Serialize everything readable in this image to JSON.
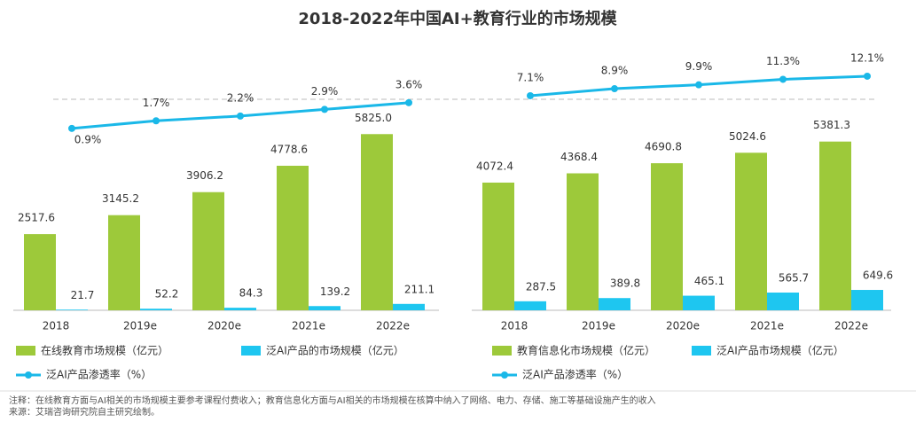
{
  "title": "2018-2022年中国AI+教育行业的市场规模",
  "chart_data": [
    {
      "type": "bar",
      "categories": [
        "2018",
        "2019e",
        "2020e",
        "2021e",
        "2022e"
      ],
      "ylim": [
        0,
        8500
      ],
      "y2lim": [
        -18.2,
        8.8
      ],
      "series": [
        {
          "name": "在线教育市场规模（亿元）",
          "color": "#9dc93a",
          "values": [
            2517.6,
            3145.2,
            3906.2,
            4778.6,
            5825.0
          ],
          "value_labels": [
            "2517.6",
            "3145.2",
            "3906.2",
            "4778.6",
            "5825.0"
          ]
        },
        {
          "name": "泛AI产品的市场规模（亿元）",
          "color": "#1ec6f0",
          "values": [
            21.7,
            52.2,
            84.3,
            139.2,
            211.1
          ],
          "value_labels": [
            "21.7",
            "52.2",
            "84.3",
            "139.2",
            "211.1"
          ]
        },
        {
          "name": "泛AI产品渗透率（%）",
          "type": "line",
          "axis": "y2",
          "color": "#1ab8e8",
          "values": [
            0.9,
            1.7,
            2.2,
            2.9,
            3.6
          ],
          "value_labels": [
            "0.9%",
            "1.7%",
            "2.2%",
            "2.9%",
            "3.6%"
          ]
        }
      ]
    },
    {
      "type": "bar",
      "categories": [
        "2018",
        "2019e",
        "2020e",
        "2021e",
        "2022e"
      ],
      "ylim": [
        0,
        8200
      ],
      "y2lim": [
        -47.9,
        18
      ],
      "series": [
        {
          "name": "教育信息化市场规模（亿元）",
          "color": "#9dc93a",
          "values": [
            4072.4,
            4368.4,
            4690.8,
            5024.6,
            5381.3
          ],
          "value_labels": [
            "4072.4",
            "4368.4",
            "4690.8",
            "5024.6",
            "5381.3"
          ]
        },
        {
          "name": "泛AI产品市场规模（亿元）",
          "color": "#1ec6f0",
          "values": [
            287.5,
            389.8,
            465.1,
            565.7,
            649.6
          ],
          "value_labels": [
            "287.5",
            "389.8",
            "465.1",
            "565.7",
            "649.6"
          ]
        },
        {
          "name": "泛AI产品渗透率（%）",
          "type": "line",
          "axis": "y2",
          "color": "#1ab8e8",
          "values": [
            7.1,
            8.9,
            9.9,
            11.3,
            12.1
          ],
          "value_labels": [
            "7.1%",
            "8.9%",
            "9.9%",
            "11.3%",
            "12.1%"
          ]
        }
      ]
    }
  ],
  "notes": [
    "注释：在线教育方面与AI相关的市场规模主要参考课程付费收入；教育信息化方面与AI相关的市场规模在核算中纳入了网络、电力、存储、施工等基础设施产生的收入",
    "来源：艾瑞咨询研究院自主研究绘制。"
  ]
}
